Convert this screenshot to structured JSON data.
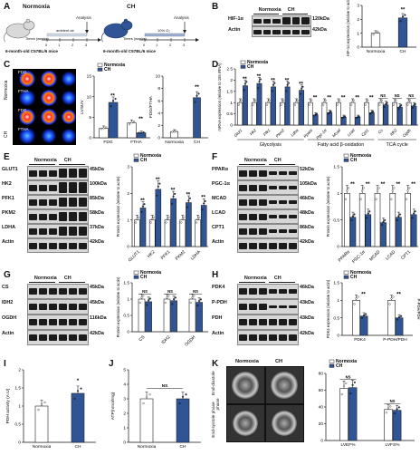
{
  "colors": {
    "normoxia": "#ffffff",
    "ch": "#2f5597",
    "bar_edge": "#222222",
    "ns": "#111111"
  },
  "panelA": {
    "label": "A",
    "normoxia": {
      "group": "Normoxia",
      "ambient": "ambient air",
      "analysis": "Analysis",
      "times": "Times (weeks)",
      "ticks": [
        "0",
        "1",
        "2",
        "3"
      ],
      "mice": "6-month-old C57BL/6 mice"
    },
    "ch": {
      "group": "CH",
      "o2": "10% O₂",
      "analysis": "Analysis",
      "times": "Times (weeks)",
      "ticks": [
        "0",
        "1",
        "2",
        "3"
      ],
      "mice": "6-month-old C57BL/6 mice"
    }
  },
  "panelB": {
    "label": "B",
    "header": {
      "normoxia": "Normoxia",
      "ch": "CH"
    },
    "rows": [
      {
        "name": "HIF-1α",
        "kda": "120kDa"
      },
      {
        "name": "Actin",
        "kda": "42kDa"
      }
    ]
  },
  "panelC": {
    "label": "C",
    "legend": {
      "normoxia": "Normoxia",
      "ch": "CH"
    },
    "row_labels": [
      "Normoxia",
      "CH"
    ],
    "scan_labels": [
      "FDG",
      "FTHA",
      "FDG",
      "FTHA"
    ]
  },
  "panelD": {
    "label": "D",
    "legend": {
      "normoxia": "Normoxia",
      "ch": "CH"
    },
    "groups": [
      "Glycolysis",
      "Fatty acid β-oxidation",
      "TCA cycle"
    ]
  },
  "panelE": {
    "label": "E",
    "header": {
      "normoxia": "Normoxia",
      "ch": "CH"
    },
    "rows": [
      {
        "name": "GLUT1",
        "kda": "45kDa"
      },
      {
        "name": "HK2",
        "kda": "100kDa"
      },
      {
        "name": "PFK1",
        "kda": "85kDa"
      },
      {
        "name": "PKM2",
        "kda": "58kDa"
      },
      {
        "name": "LDHA",
        "kda": "37kDa"
      },
      {
        "name": "Actin",
        "kda": "42kDa"
      }
    ],
    "legend": {
      "normoxia": "Normoxia",
      "ch": "CH"
    }
  },
  "panelF": {
    "label": "F",
    "header": {
      "normoxia": "Normoxia",
      "ch": "CH"
    },
    "rows": [
      {
        "name": "PPARα",
        "kda": "52kDa"
      },
      {
        "name": "PGC-1α",
        "kda": "105kDa"
      },
      {
        "name": "MCAD",
        "kda": "46kDa"
      },
      {
        "name": "LCAD",
        "kda": "48kDa"
      },
      {
        "name": "CPT1",
        "kda": "86kDa"
      },
      {
        "name": "Actin",
        "kda": "42kDa"
      }
    ],
    "legend": {
      "normoxia": "Normoxia",
      "ch": "CH"
    }
  },
  "panelG": {
    "label": "G",
    "header": {
      "normoxia": "Normoxia",
      "ch": "CH"
    },
    "rows": [
      {
        "name": "CS",
        "kda": "45kDa"
      },
      {
        "name": "IDH2",
        "kda": "45kDa"
      },
      {
        "name": "OGDH",
        "kda": "116kDa"
      },
      {
        "name": "Actin",
        "kda": "42kDa"
      }
    ],
    "legend": {
      "normoxia": "Normoxia",
      "ch": "CH"
    }
  },
  "panelH": {
    "label": "H",
    "header": {
      "normoxia": "Normoxia",
      "ch": "CH"
    },
    "rows": [
      {
        "name": "PDK4",
        "kda": "46kDa"
      },
      {
        "name": "P-PDH",
        "kda": "43kDa"
      },
      {
        "name": "PDH",
        "kda": "43kDa"
      },
      {
        "name": "Actin",
        "kda": "42kDa"
      }
    ],
    "legend": {
      "normoxia": "Normoxia",
      "ch": "CH"
    }
  },
  "panelI": {
    "label": "I"
  },
  "panelJ": {
    "label": "J"
  },
  "panelK": {
    "label": "K",
    "header": {
      "normoxia": "Normoxia",
      "ch": "CH"
    },
    "row_labels": [
      "End-diastole phase",
      "End-systole phase"
    ],
    "legend": {
      "normoxia": "Normoxia",
      "ch": "CH"
    }
  },
  "chart_data": [
    {
      "id": "B",
      "type": "bar",
      "categories": [
        "Normoxia",
        "CH"
      ],
      "values": [
        1.0,
        2.1
      ],
      "ylabel": "HIF-1α expression (relative to actin)",
      "ylim": [
        0,
        3
      ],
      "yticks": [
        0,
        1,
        2,
        3
      ],
      "sig": [
        "",
        "**"
      ]
    },
    {
      "id": "C1",
      "type": "bar",
      "categories": [
        "FDG",
        "FTHA"
      ],
      "series": [
        {
          "name": "Normoxia",
          "values": [
            2.3,
            3.6
          ]
        },
        {
          "name": "CH",
          "values": [
            8.6,
            1.2
          ]
        }
      ],
      "ylabel": "LVSUV",
      "ylim": [
        0,
        15
      ],
      "yticks": [
        0,
        5,
        10,
        15
      ],
      "sig": [
        "**",
        "**"
      ]
    },
    {
      "id": "C2",
      "type": "bar",
      "categories": [
        "Normoxia",
        "CH"
      ],
      "values": [
        1.0,
        6.5
      ],
      "ylabel": "FDG/FTHA",
      "ylim": [
        0,
        10
      ],
      "yticks": [
        0,
        2,
        4,
        6,
        8,
        10
      ],
      "sig": [
        "",
        "**"
      ]
    },
    {
      "id": "D",
      "type": "bar",
      "categories": [
        "Glut1",
        "Hk2",
        "Pfk1",
        "Pkm2",
        "Ldha",
        "Pparα",
        "Pgc-1α",
        "Mcad",
        "Lcad",
        "Cpt1",
        "Cs",
        "Idh2",
        "Ogdh"
      ],
      "series": [
        {
          "name": "Normoxia",
          "values": [
            1,
            1,
            1,
            1,
            1,
            1,
            1,
            1,
            1,
            1,
            1,
            1,
            1
          ]
        },
        {
          "name": "CH",
          "values": [
            1.75,
            1.85,
            1.7,
            1.7,
            1.55,
            0.45,
            0.55,
            0.35,
            0.35,
            0.55,
            0.9,
            0.8,
            0.85
          ]
        }
      ],
      "ylabel": "mRNA expression (relative to 18s rRNA)",
      "ylim": [
        0,
        2.5
      ],
      "yticks": [
        0.0,
        0.5,
        1.0,
        1.5,
        2.0,
        2.5
      ],
      "sig": [
        "**",
        "**",
        "**",
        "**",
        "**",
        "**",
        "**",
        "**",
        "**",
        "**",
        "NS",
        "NS",
        "NS"
      ]
    },
    {
      "id": "E",
      "type": "bar",
      "categories": [
        "GLUT1",
        "HK2",
        "PFK1",
        "PKM2",
        "LDHA"
      ],
      "series": [
        {
          "name": "Normoxia",
          "values": [
            1,
            1,
            1,
            1,
            1
          ]
        },
        {
          "name": "CH",
          "values": [
            1.45,
            2.15,
            1.8,
            1.65,
            1.55
          ]
        }
      ],
      "ylabel": "Protein expression (relative to actin)",
      "ylim": [
        0,
        3
      ],
      "yticks": [
        0,
        1,
        2,
        3
      ],
      "sig": [
        "**",
        "**",
        "**",
        "**",
        "**"
      ]
    },
    {
      "id": "F",
      "type": "bar",
      "categories": [
        "PPARα",
        "PGC-1α",
        "MCAD",
        "LCAD",
        "CPT1"
      ],
      "series": [
        {
          "name": "Normoxia",
          "values": [
            1,
            1,
            1,
            1,
            1
          ]
        },
        {
          "name": "CH",
          "values": [
            0.55,
            0.6,
            0.45,
            0.55,
            0.6
          ]
        }
      ],
      "ylabel": "Protein expression (relative to actin)",
      "ylim": [
        0,
        1.5
      ],
      "yticks": [
        0.0,
        0.5,
        1.0,
        1.5
      ],
      "sig": [
        "**",
        "**",
        "**",
        "**",
        "**"
      ]
    },
    {
      "id": "G",
      "type": "bar",
      "categories": [
        "CS",
        "IDH2",
        "OGDH"
      ],
      "series": [
        {
          "name": "Normoxia",
          "values": [
            1,
            1,
            1
          ]
        },
        {
          "name": "CH",
          "values": [
            0.92,
            0.95,
            0.9
          ]
        }
      ],
      "ylabel": "Protein expression (relative to actin)",
      "ylim": [
        0,
        1.5
      ],
      "yticks": [
        0.0,
        0.5,
        1.0,
        1.5
      ],
      "sig": [
        "NS",
        "NS",
        "NS"
      ]
    },
    {
      "id": "H",
      "type": "bar",
      "categories": [
        "PDK4",
        "P-PDH/PDH"
      ],
      "series": [
        {
          "name": "Normoxia",
          "values": [
            1,
            1
          ]
        },
        {
          "name": "CH",
          "values": [
            0.55,
            0.5
          ]
        }
      ],
      "ylabel": "PDK4 expression (relative to actin)",
      "y2label": "P-PDH/PDH",
      "ylim": [
        0,
        1.5
      ],
      "yticks": [
        0.0,
        0.5,
        1.0,
        1.5
      ],
      "sig": [
        "**",
        "**"
      ]
    },
    {
      "id": "I",
      "type": "bar",
      "categories": [
        "Normoxia",
        "CH"
      ],
      "values": [
        1.0,
        1.35
      ],
      "ylabel": "PDH activity (A.U)",
      "ylim": [
        0,
        2
      ],
      "yticks": [
        0.0,
        0.5,
        1.0,
        1.5,
        2.0
      ],
      "sig": [
        "",
        "*"
      ]
    },
    {
      "id": "J",
      "type": "bar",
      "categories": [
        "Normoxia",
        "CH"
      ],
      "values": [
        3.0,
        3.0
      ],
      "ylabel": "ATP(nmol/mg)",
      "ylim": [
        0,
        5
      ],
      "yticks": [
        0,
        1,
        2,
        3,
        4,
        5
      ],
      "sig": [
        "NS"
      ]
    },
    {
      "id": "K",
      "type": "bar",
      "categories": [
        "LVEF%",
        "LVFS%"
      ],
      "series": [
        {
          "name": "Normoxia",
          "values": [
            62,
            37
          ]
        },
        {
          "name": "CH",
          "values": [
            63,
            36
          ]
        }
      ],
      "ylim": [
        0,
        80
      ],
      "yticks": [
        0,
        20,
        40,
        60,
        80
      ],
      "sig": [
        "NS",
        "NS"
      ]
    }
  ]
}
